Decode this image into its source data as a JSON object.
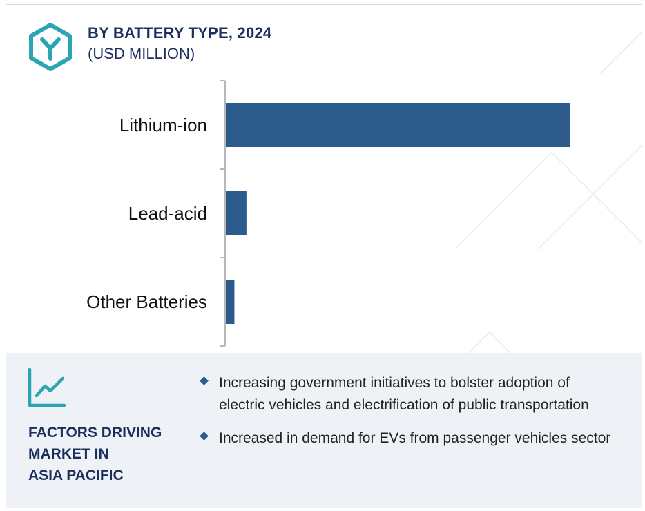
{
  "header": {
    "title": "BY BATTERY TYPE, 2024",
    "subtitle": "(USD MILLION)",
    "logo_icon": "hexagon-y-logo-icon"
  },
  "chart_data": {
    "type": "bar",
    "orientation": "horizontal",
    "title": "BY BATTERY TYPE, 2024",
    "subtitle": "(USD MILLION)",
    "categories": [
      "Lithium-ion",
      "Lead-acid",
      "Other Batteries"
    ],
    "values": [
      100,
      6,
      2.5
    ],
    "xlim": [
      0,
      100
    ],
    "grid": false,
    "legend": "none",
    "colors": {
      "bar": "#2c5b8c",
      "axis": "#b8b8b8"
    }
  },
  "factors": {
    "icon": "line-chart-icon",
    "title_lines": [
      "FACTORS DRIVING",
      "MARKET IN",
      "ASIA PACIFIC"
    ],
    "bullets": [
      "Increasing government initiatives to bolster adoption of electric vehicles and electrification of public transportation",
      "Increased in demand for EVs from passenger vehicles sector"
    ]
  },
  "colors": {
    "accent_teal": "#2ba5b3",
    "navy": "#1c2f5c",
    "panel_bg": "#eef1f6"
  }
}
